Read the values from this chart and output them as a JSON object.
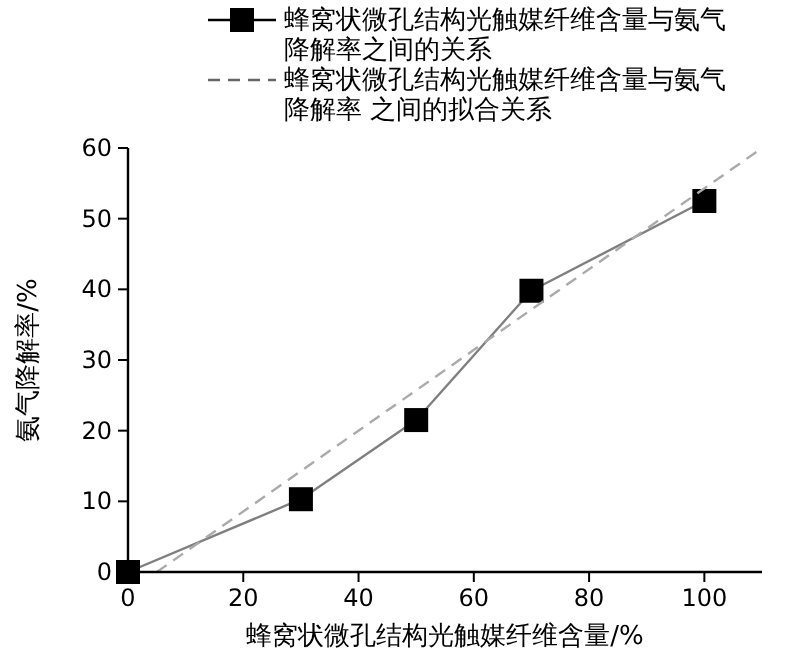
{
  "chart_data": {
    "type": "line",
    "xlabel": "蜂窝状微孔结构光触媒纤维含量/%",
    "ylabel": "氨气降解率/%",
    "xlim": [
      0,
      110
    ],
    "xticks": [
      0,
      20,
      40,
      60,
      80,
      100
    ],
    "ylim": [
      0,
      60
    ],
    "yticks": [
      0,
      10,
      20,
      30,
      40,
      50,
      60
    ],
    "grid": false,
    "legend": "top",
    "series": [
      {
        "name": "蜂窝状微孔结构光触媒纤维含量与氨气降解率之间的关系",
        "color": "#000000",
        "marker": "square",
        "line_style": "solid",
        "x": [
          0,
          30,
          50,
          70,
          100
        ],
        "values": [
          0,
          10.3,
          21.5,
          39.8,
          52.5
        ]
      },
      {
        "name": "蜂窝状微孔结构光触媒纤维含量与氨气降解率 之间的拟合关系",
        "color": "#aaaaaa",
        "marker": "none",
        "line_style": "dashed",
        "x": [
          5,
          110
        ],
        "values": [
          0,
          60
        ]
      }
    ]
  }
}
